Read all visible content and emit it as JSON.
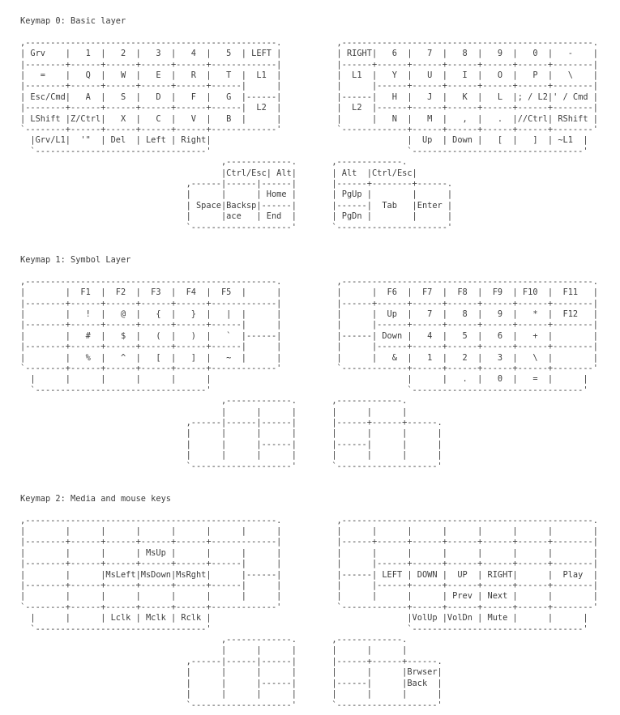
{
  "page": {
    "background_color": "#ffffff",
    "text_color": "#3d3d3d"
  },
  "keymaps": [
    {
      "title": "Keymap 0: Basic layer",
      "lines": [
        ",--------------------------------------------------.           ,--------------------------------------------------.",
        "| Grv    |   1  |   2  |   3  |   4  |   5  | LEFT |           | RIGHT|   6  |   7  |   8  |   9  |   0  |   -    |",
        "|--------+------+------+------+------+-------------|           |------+------+------+------+------+------+--------|",
        "|   =    |   Q  |   W  |   E  |   R  |   T  |  L1  |           |  L1  |   Y  |   U  |   I  |   O  |   P  |   \\    |",
        "|--------+------+------+------+------+------|      |           |      |------+------+------+------+------+--------|",
        "| Esc/Cmd|   A  |   S  |   D  |   F  |   G  |------|           |------|   H  |   J  |   K  |   L  |; / L2|' / Cmd |",
        "|--------+------+------+------+------+------|  L2  |           |  L2  |------+------+------+------+------+--------|",
        "| LShift |Z/Ctrl|   X  |   C  |   V  |   B  |      |           |      |   N  |   M  |   ,  |   .  |//Ctrl| RShift |",
        "`--------+------+------+------+------+-------------'           `-------------+------+------+------+------+--------'",
        "  |Grv/L1|  '\"  | Del  | Left | Right|                                       |  Up  | Down |   [  |   ]  | ~L1  |",
        "  `----------------------------------'                                       `----------------------------------'",
        "                                        ,-------------.       ,-------------.",
        "                                        |Ctrl/Esc| Alt|       | Alt  |Ctrl/Esc|",
        "                                 ,------|------|------|       |------+--------+------.",
        "                                 |      |      | Home |       | PgUp |        |      |",
        "                                 | Space|Backsp|------|       |------|  Tab   |Enter |",
        "                                 |      |ace   | End  |       | PgDn |        |      |",
        "                                 `--------------------'       `----------------------'"
      ]
    },
    {
      "title": "Keymap 1: Symbol Layer",
      "lines": [
        ",--------------------------------------------------.           ,--------------------------------------------------.",
        "|        |  F1  |  F2  |  F3  |  F4  |  F5  |      |           |      |  F6  |  F7  |  F8  |  F9  | F10  |  F11   |",
        "|--------+------+------+------+------+-------------|           |------+------+------+------+------+------+--------|",
        "|        |   !  |   @  |   {  |   }  |   |  |      |           |      |  Up  |   7  |   8  |   9  |   *  |  F12   |",
        "|--------+------+------+------+------+------|      |           |      |------+------+------+------+------+--------|",
        "|        |   #  |   $  |   (  |   )  |   `  |------|           |------| Down |   4  |   5  |   6  |   +  |        |",
        "|--------+------+------+------+------+------|      |           |      |------+------+------+------+------+--------|",
        "|        |   %  |   ^  |   [  |   ]  |   ~  |      |           |      |   &  |   1  |   2  |   3  |   \\  |        |",
        "`--------+------+------+------+------+-------------'           `-------------+------+------+------+------+--------'",
        "  |      |      |      |      |      |                                       |      |   .  |   0  |   =  |      |",
        "  `----------------------------------'                                       `----------------------------------'",
        "                                        ,-------------.       ,-------------.",
        "                                        |      |      |       |      |      |",
        "                                 ,------|------|------|       |------+------+------.",
        "                                 |      |      |      |       |      |      |      |",
        "                                 |      |      |------|       |------|      |      |",
        "                                 |      |      |      |       |      |      |      |",
        "                                 `--------------------'       `--------------------'"
      ]
    },
    {
      "title": "Keymap 2: Media and mouse keys",
      "lines": [
        ",--------------------------------------------------.           ,--------------------------------------------------.",
        "|        |      |      |      |      |      |      |           |      |      |      |      |      |      |        |",
        "|--------+------+------+------+------+-------------|           |------+------+------+------+------+------+--------|",
        "|        |      |      | MsUp |      |      |      |           |      |      |      |      |      |      |        |",
        "|--------+------+------+------+------+------|      |           |      |------+------+------+------+------+--------|",
        "|        |      |MsLeft|MsDown|MsRght|      |------|           |------| LEFT | DOWN |  UP  | RIGHT|      |  Play  |",
        "|--------+------+------+------+------+------|      |           |      |------+------+------+------+------+--------|",
        "|        |      |      |      |      |      |      |           |      |      |      | Prev | Next |      |        |",
        "`--------+------+------+------+------+-------------'           `-------------+------+------+------+------+--------'",
        "  |      |      | Lclk | Mclk | Rclk |                                       |VolUp |VolDn | Mute |      |      |",
        "  `----------------------------------'                                       `----------------------------------'",
        "                                        ,-------------.       ,-------------.",
        "                                        |      |      |       |      |      |",
        "                                 ,------|------|------|       |------+------+------.",
        "                                 |      |      |      |       |      |      |Brwser|",
        "                                 |      |      |------|       |------|      |Back  |",
        "                                 |      |      |      |       |      |      |      |",
        "                                 `--------------------'       `--------------------'"
      ]
    }
  ]
}
